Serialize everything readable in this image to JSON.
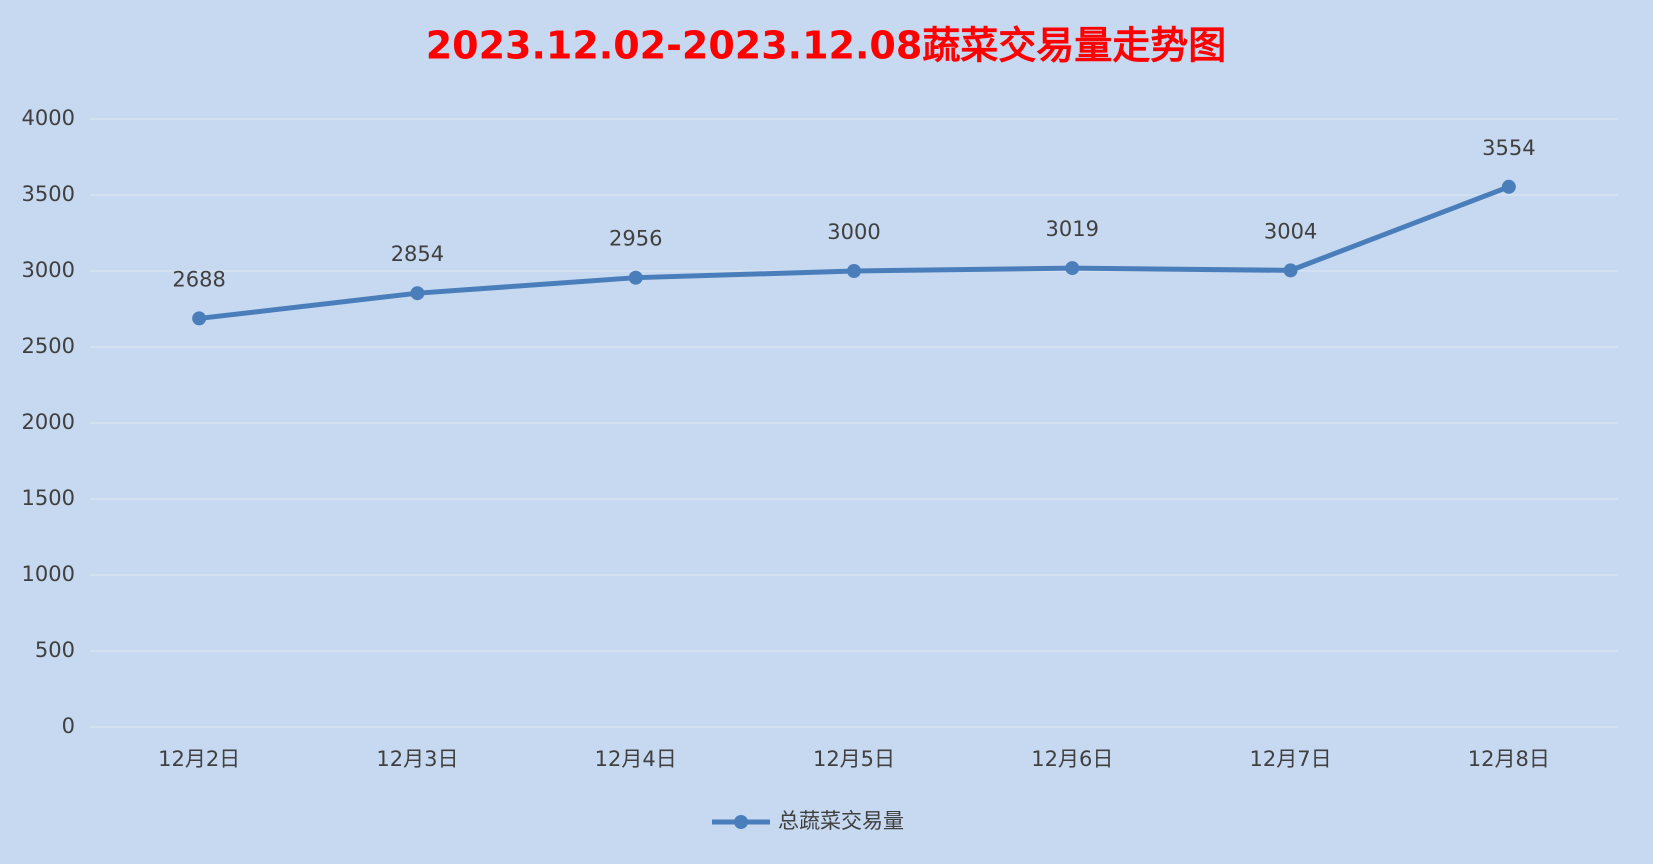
{
  "chart_data": {
    "type": "line",
    "title": "2023.12.02-2023.12.08蔬菜交易量走势图",
    "categories": [
      "12月2日",
      "12月3日",
      "12月4日",
      "12月5日",
      "12月6日",
      "12月7日",
      "12月8日"
    ],
    "series": [
      {
        "name": "总蔬菜交易量",
        "color": "#4a7ebb",
        "values": [
          2688,
          2854,
          2956,
          3000,
          3019,
          3004,
          3554
        ]
      }
    ],
    "ylim": [
      0,
      4000
    ],
    "yticks": [
      0,
      500,
      1000,
      1500,
      2000,
      2500,
      3000,
      3500,
      4000
    ],
    "grid": true,
    "legend": "bottom"
  }
}
